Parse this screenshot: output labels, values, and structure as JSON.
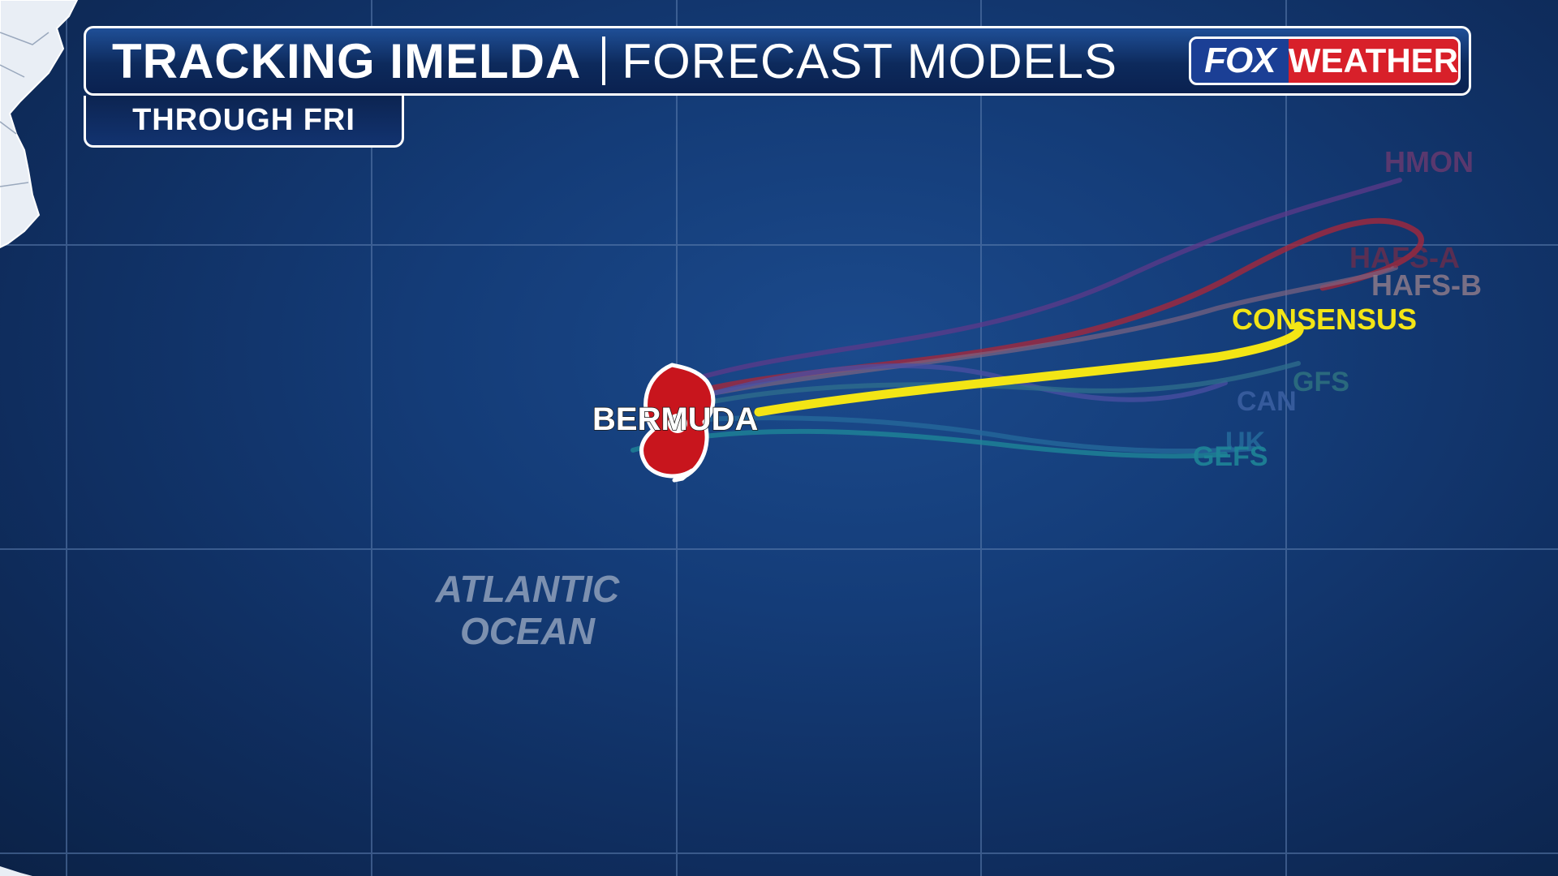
{
  "header": {
    "title": "TRACKING IMELDA",
    "subtitle": "FORECAST MODELS",
    "period": "THROUGH FRI"
  },
  "logo": {
    "part1": "FOX",
    "part2": "WEATHER",
    "colors": {
      "fox": "#1b3f95",
      "weather": "#d8202a"
    }
  },
  "map": {
    "ocean_label_line1": "ATLANTIC",
    "ocean_label_line2": "OCEAN",
    "location_label": "BERMUDA",
    "storm_icon": "hurricane-icon",
    "storm_color": "#c8151d"
  },
  "models": [
    {
      "name": "HMON",
      "color": "#7a3a8c"
    },
    {
      "name": "HAFS-A",
      "color": "#b02838"
    },
    {
      "name": "HAFS-B",
      "color": "#8a6f8a"
    },
    {
      "name": "CONSENSUS",
      "color": "#f3e515"
    },
    {
      "name": "GFS",
      "color": "#2f7a8a"
    },
    {
      "name": "CAN",
      "color": "#3b6fa8"
    },
    {
      "name": "UK",
      "color": "#246f9c"
    },
    {
      "name": "GEFS",
      "color": "#1f8a9a"
    }
  ]
}
